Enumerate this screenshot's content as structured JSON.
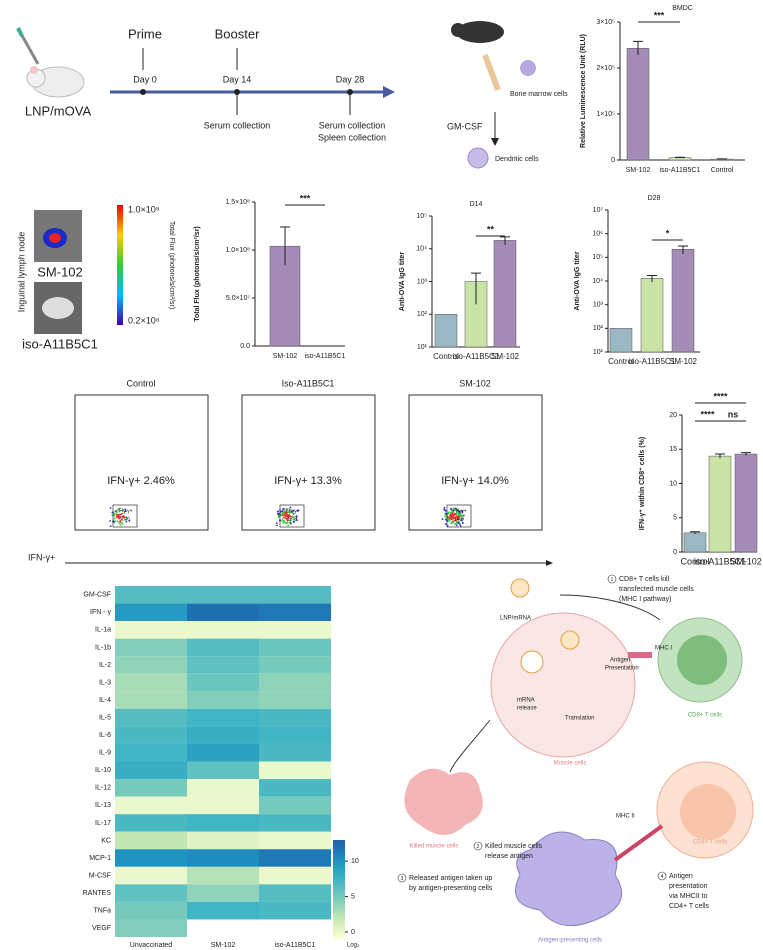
{
  "timeline": {
    "vaccine": "LNP/mOVA",
    "events": [
      "Prime",
      "Booster"
    ],
    "days": [
      "Day 0",
      "Day 14",
      "Day 28"
    ],
    "notes": [
      [
        "Serum collection"
      ],
      [
        "Serum collection",
        "Spleen collection"
      ]
    ]
  },
  "bmdc": {
    "cells": "Bone marrow cells",
    "factor": "GM-CSF",
    "result": "Dendritic cells"
  },
  "imaging": {
    "tissue": "Inguinal lymph node",
    "samples": [
      "SM-102",
      "iso-A11B5C1"
    ],
    "scale_label": "Total Flux (photons/s/cm²/sr)",
    "scale_ticks": [
      "1.0×10⁸",
      "0.2×10⁸"
    ]
  },
  "chart_data": [
    {
      "type": "bar",
      "title": "BMDC",
      "ylabel": "Relative Luminescence Unit (RLU)",
      "categories": [
        "SM-102",
        "iso-A11B5C1",
        "Control"
      ],
      "values": [
        243000,
        5000,
        2000
      ],
      "errors": [
        15000,
        1000,
        500
      ],
      "colors": [
        "#a48bb8",
        "#c9e3a6",
        "#9ab8c4"
      ],
      "ylim": [
        0,
        300000
      ],
      "yticks": [
        0,
        {
          "value": 100000,
          "label": "1×10⁵"
        },
        {
          "value": 200000,
          "label": "2×10⁵"
        },
        {
          "value": 300000,
          "label": "3×10⁵"
        }
      ],
      "annotations": [
        "***"
      ]
    },
    {
      "type": "bar",
      "ylabel": "Total Flux (photons/s/cm²/sr)",
      "categories": [
        "SM-102",
        "iso-A11B5C1"
      ],
      "values": [
        104000000,
        0
      ],
      "errors": [
        20000000,
        0
      ],
      "colors": [
        "#a48bb8",
        "#c9e3a6"
      ],
      "ylim": [
        0,
        150000000
      ],
      "yticks": [
        {
          "value": 0,
          "label": "0.0"
        },
        {
          "value": 50000000,
          "label": "5.0×10⁷"
        },
        {
          "value": 100000000,
          "label": "1.0×10⁸"
        },
        {
          "value": 150000000,
          "label": "1.5×10⁸"
        }
      ],
      "annotations": [
        "***"
      ]
    },
    {
      "type": "bar",
      "title": "D14",
      "ylabel": "Anti-OVA IgG titer",
      "log_scale": true,
      "categories": [
        "Control",
        "iso-A11B5C1",
        "SM-102"
      ],
      "values": [
        100,
        1000,
        18000
      ],
      "errors": [
        0,
        800,
        5000
      ],
      "colors": [
        "#9ab8c4",
        "#c9e3a6",
        "#a48bb8"
      ],
      "ylim": [
        10,
        100000
      ],
      "yticks": [
        {
          "value": 10,
          "label": "10¹"
        },
        {
          "value": 100,
          "label": "10²"
        },
        {
          "value": 1000,
          "label": "10³"
        },
        {
          "value": 10000,
          "label": "10⁴"
        },
        {
          "value": 100000,
          "label": "10⁵"
        }
      ],
      "annotations": [
        "**"
      ]
    },
    {
      "type": "bar",
      "title": "D28",
      "ylabel": "Anti-OVA IgG titer",
      "log_scale": true,
      "categories": [
        "Control",
        "iso-A11B5C1",
        "SM-102"
      ],
      "values": [
        100,
        13000,
        220000
      ],
      "errors": [
        0,
        4000,
        80000
      ],
      "colors": [
        "#9ab8c4",
        "#c9e3a6",
        "#a48bb8"
      ],
      "ylim": [
        10,
        10000000
      ],
      "yticks": [
        {
          "value": 10,
          "label": "10¹"
        },
        {
          "value": 100,
          "label": "10²"
        },
        {
          "value": 1000,
          "label": "10³"
        },
        {
          "value": 10000,
          "label": "10⁴"
        },
        {
          "value": 100000,
          "label": "10⁵"
        },
        {
          "value": 1000000,
          "label": "10⁶"
        },
        {
          "value": 10000000,
          "label": "10⁷"
        }
      ],
      "annotations": [
        "*"
      ]
    },
    {
      "type": "bar",
      "ylabel": "IFN-γ⁺ within CD8⁺ cells (%)",
      "categories": [
        "Control",
        "iso-A11B5C1",
        "SM-102"
      ],
      "values": [
        2.8,
        14.0,
        14.3
      ],
      "errors": [
        0.15,
        0.3,
        0.2
      ],
      "colors": [
        "#9ab8c4",
        "#c9e3a6",
        "#a48bb8"
      ],
      "ylim": [
        0,
        20
      ],
      "yticks": [
        0,
        5,
        10,
        15,
        20
      ],
      "annotations": [
        "****",
        "****",
        "ns"
      ]
    },
    {
      "type": "heatmap",
      "rows": [
        "GM-CSF",
        "IFN - γ",
        "IL-1a",
        "IL-1b",
        "IL-2",
        "IL-3",
        "IL-4",
        "IL-5",
        "IL-6",
        "IL-9",
        "IL-10",
        "IL-12",
        "IL-13",
        "IL-17",
        "KC",
        "MCP-1",
        "M-CSF",
        "RANTES",
        "TNFa",
        "VEGF"
      ],
      "columns": [
        "Unvaccinated",
        "SM-102",
        "iso-A11B5C1"
      ],
      "values": [
        [
          6.5,
          6.5,
          6.5
        ],
        [
          9.5,
          12,
          11.5
        ],
        [
          0,
          0,
          0
        ],
        [
          4.5,
          6.5,
          5.5
        ],
        [
          4,
          6,
          5
        ],
        [
          3,
          5.5,
          4
        ],
        [
          3,
          4.5,
          4
        ],
        [
          6.5,
          7.5,
          7
        ],
        [
          7,
          8,
          7.5
        ],
        [
          7.5,
          9,
          7
        ],
        [
          8,
          6,
          0
        ],
        [
          5,
          0,
          7
        ],
        [
          0,
          0,
          5
        ],
        [
          7,
          7.5,
          7
        ],
        [
          2,
          0.5,
          0
        ],
        [
          10,
          10.5,
          11.5
        ],
        [
          0,
          2.5,
          0
        ],
        [
          6,
          4,
          6.5
        ],
        [
          5,
          7.5,
          7
        ],
        [
          4.5,
          null,
          null
        ]
      ],
      "zlim": [
        -1,
        13
      ],
      "colors": [
        "#ffffd9",
        "#c7e9b4",
        "#7fcdbb",
        "#41b6c4",
        "#1d91c0",
        "#225ea8"
      ],
      "zticks": [
        0,
        5,
        10
      ],
      "zlabel": "Log₂"
    }
  ],
  "flow": {
    "panels": [
      {
        "title": "Control",
        "summary": "IFN-γ+ 2.46%",
        "gate": [
          "IFN-γ+",
          "2.46"
        ]
      },
      {
        "title": "Iso-A11B5C1",
        "summary": "IFN-γ+ 13.3%",
        "gate": [
          "IFN-γ+",
          "13.3"
        ]
      },
      {
        "title": "SM-102",
        "summary": "IFN-γ+ 14.0%",
        "gate": [
          "IFN-γ+",
          "14.0"
        ]
      }
    ],
    "axis": "IFN-γ+"
  },
  "mechanism": {
    "particle": "LNP/mRNA",
    "release": [
      "mRNA",
      "release"
    ],
    "translation": "Translation",
    "presentation": [
      "Antigen",
      "Presentation"
    ],
    "mhc1": "MHC I",
    "cd8": "CD8+ T cells",
    "muscle": "Muscle cells",
    "killed": "Killed muscle cells",
    "mhc2": "MHC II",
    "cd4": "CD4+ T cells",
    "apc": "Antigen-presenting cells",
    "steps": [
      {
        "number": "1",
        "lines": [
          "CD8+ T cells kill",
          "transfected muscle cells",
          "(MHC I pathway)"
        ]
      },
      {
        "number": "2",
        "lines": [
          "Killed muscle cells",
          "release antigen"
        ]
      },
      {
        "number": "3",
        "lines": [
          "Released antigen taken up",
          "by antigen-presenting cells"
        ]
      },
      {
        "number": "4",
        "lines": [
          "Antigen",
          "presentation",
          "via MHCII to",
          "CD4+ T cells"
        ]
      }
    ]
  }
}
